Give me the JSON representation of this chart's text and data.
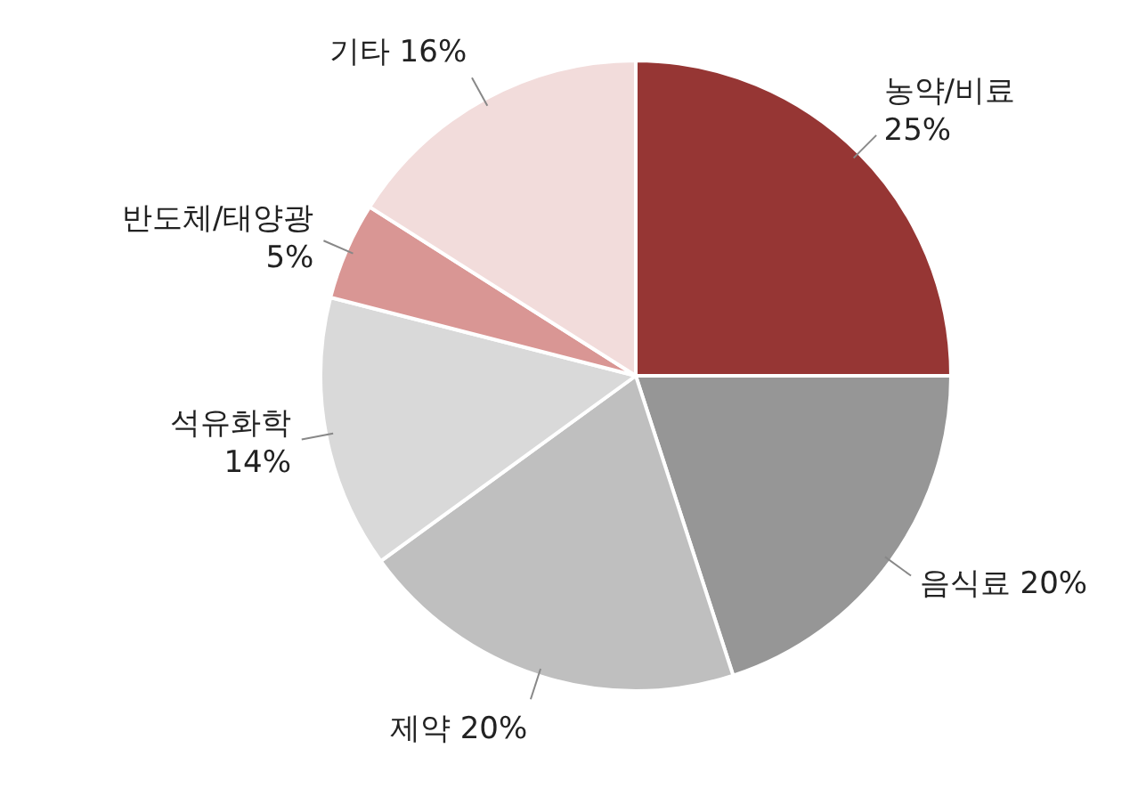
{
  "chart_data": {
    "type": "pie",
    "categories": [
      "농약/비료",
      "음식료",
      "제약",
      "석유화학",
      "반도체/태양광",
      "기타"
    ],
    "values": [
      25,
      20,
      20,
      14,
      5,
      16
    ],
    "colors": [
      "#963634",
      "#969696",
      "#bfbfbf",
      "#d9d9d9",
      "#d99694",
      "#f2dcdb"
    ],
    "value_labels": [
      "25%",
      "20%",
      "20%",
      "14%",
      "5%",
      "16%"
    ],
    "data_labels": true,
    "legend": false
  }
}
